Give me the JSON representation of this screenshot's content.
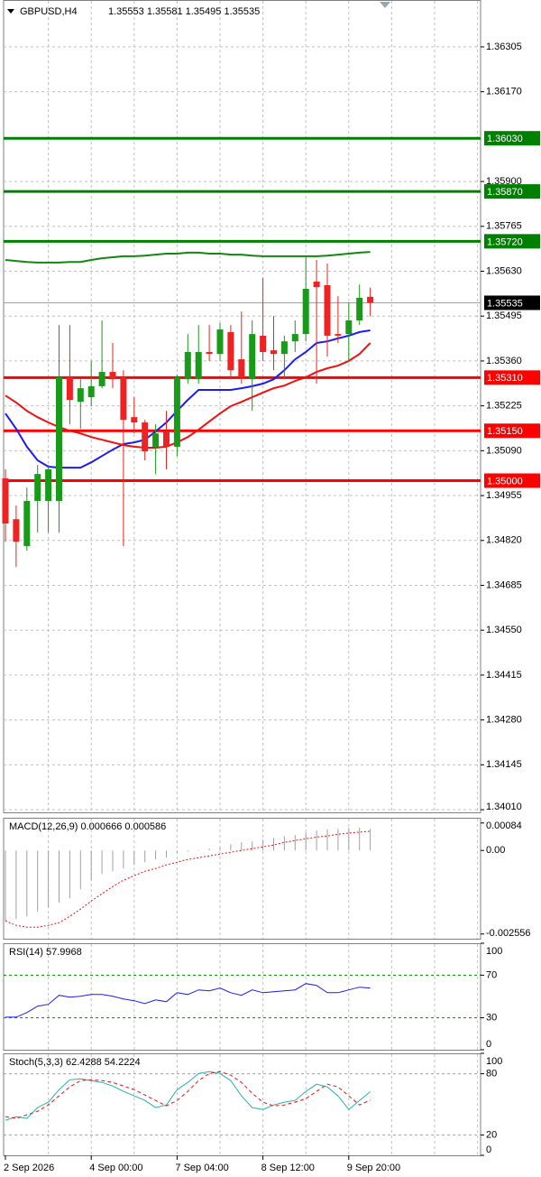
{
  "chart_data": [
    {
      "type": "candlestick",
      "title": "GBPUSD,H4",
      "ohlc_text": "1.35553 1.35581 1.35495 1.35535",
      "categories": [
        "2 Sep 2026",
        null,
        null,
        null,
        null,
        null,
        null,
        null,
        "4 Sep 00:00",
        null,
        null,
        null,
        null,
        null,
        null,
        null,
        "7 Sep 04:00",
        null,
        null,
        null,
        null,
        null,
        null,
        null,
        "8 Sep 12:00",
        null,
        null,
        null,
        null,
        null,
        null,
        null,
        "9 Sep 20:00",
        null,
        null
      ],
      "open": [
        1.35007,
        1.34884,
        1.34803,
        1.34939,
        1.34939,
        1.34939,
        1.35311,
        1.35237,
        1.35251,
        1.35284,
        1.35327,
        1.35311,
        1.35191,
        1.35175,
        1.35102,
        1.35148,
        1.35102,
        1.35305,
        1.35305,
        1.35387,
        1.35381,
        1.35447,
        1.35365,
        1.35305,
        1.35436,
        1.35392,
        1.35381,
        1.35419,
        1.35441,
        1.35599,
        1.35588,
        1.35441,
        1.35441,
        1.35482,
        1.35553
      ],
      "high": [
        1.35034,
        1.34925,
        1.34979,
        1.35047,
        1.35047,
        1.35468,
        1.35468,
        1.35305,
        1.3536,
        1.35482,
        1.35414,
        1.35332,
        1.35251,
        1.35183,
        1.3517,
        1.3521,
        1.35319,
        1.35441,
        1.35468,
        1.35468,
        1.35474,
        1.35468,
        1.35509,
        1.35482,
        1.3561,
        1.35495,
        1.35436,
        1.35482,
        1.35672,
        1.35664,
        1.35653,
        1.35555,
        1.35536,
        1.3559,
        1.35581
      ],
      "low": [
        1.34816,
        1.3474,
        1.34789,
        1.34844,
        1.34844,
        1.34844,
        1.3517,
        1.35156,
        1.35224,
        1.35278,
        1.35278,
        1.34803,
        1.35142,
        1.35061,
        1.3502,
        1.35034,
        1.35074,
        1.35292,
        1.35292,
        1.3536,
        1.3536,
        1.35305,
        1.35292,
        1.3521,
        1.3536,
        1.35332,
        1.35305,
        1.35387,
        1.35419,
        1.35292,
        1.35373,
        1.35414,
        1.3536,
        1.35468,
        1.35495
      ],
      "close": [
        1.34871,
        1.34816,
        1.34939,
        1.3502,
        1.35034,
        1.35311,
        1.35243,
        1.35278,
        1.35284,
        1.35327,
        1.35305,
        1.35183,
        1.35175,
        1.35088,
        1.35142,
        1.35102,
        1.35311,
        1.35387,
        1.35387,
        1.35381,
        1.35455,
        1.35332,
        1.35311,
        1.35441,
        1.35387,
        1.35381,
        1.35419,
        1.35441,
        1.35577,
        1.35582,
        1.35436,
        1.35436,
        1.35482,
        1.3555,
        1.35535
      ],
      "up_color": "#1a9a1a",
      "down_color": "#ee2222",
      "lines": [
        {
          "color": "#1c1cf0",
          "values": [
            1.35202,
            1.35156,
            1.35102,
            1.35061,
            1.35042,
            1.35039,
            1.35039,
            1.35039,
            1.35055,
            1.35074,
            1.35093,
            1.3511,
            1.35115,
            1.35123,
            1.35148,
            1.35175,
            1.3521,
            1.35243,
            1.35273,
            1.35273,
            1.35273,
            1.35273,
            1.35278,
            1.35284,
            1.35292,
            1.35305,
            1.35332,
            1.35365,
            1.35387,
            1.35414,
            1.35419,
            1.35428,
            1.35436,
            1.35447,
            1.35452
          ]
        },
        {
          "color": "#ee1111",
          "values": [
            1.35256,
            1.35235,
            1.3521,
            1.35191,
            1.35175,
            1.35161,
            1.3515,
            1.35142,
            1.35131,
            1.35123,
            1.35115,
            1.35107,
            1.35102,
            1.35099,
            1.35099,
            1.35102,
            1.35115,
            1.35131,
            1.35153,
            1.35178,
            1.35202,
            1.35224,
            1.35237,
            1.35251,
            1.35265,
            1.35278,
            1.35286,
            1.353,
            1.35311,
            1.35327,
            1.35338,
            1.35346,
            1.3536,
            1.35381,
            1.35414
          ]
        },
        {
          "color": "#118811",
          "values": [
            1.35664,
            1.35661,
            1.35658,
            1.35656,
            1.35656,
            1.35656,
            1.35658,
            1.35658,
            1.35664,
            1.35669,
            1.35672,
            1.35675,
            1.35675,
            1.35677,
            1.3568,
            1.35683,
            1.35683,
            1.35686,
            1.35686,
            1.35683,
            1.35683,
            1.3568,
            1.3568,
            1.35677,
            1.35675,
            1.35675,
            1.35675,
            1.35675,
            1.35675,
            1.35675,
            1.35677,
            1.3568,
            1.35683,
            1.35686,
            1.35688
          ]
        }
      ],
      "levels": [
        {
          "value": 1.3603,
          "label": "1.36030",
          "color": "#008000"
        },
        {
          "value": 1.3587,
          "label": "1.35870",
          "color": "#008000"
        },
        {
          "value": 1.3572,
          "label": "1.35720",
          "color": "#008000"
        },
        {
          "value": 1.3531,
          "label": "1.35310",
          "color": "#ff0000"
        },
        {
          "value": 1.3515,
          "label": "1.35150",
          "color": "#ff0000"
        },
        {
          "value": 1.35,
          "label": "1.35000",
          "color": "#ff0000"
        }
      ],
      "last_price": 1.35535,
      "ylim": [
        1.34002,
        1.36446
      ],
      "yticks": [
        1.36305,
        {
          "value": 1.3617,
          "label": "1.36170"
        },
        {
          "value": 1.359,
          "label": "1.35900"
        },
        1.35765,
        {
          "value": 1.3563,
          "label": "1.35630"
        },
        1.35495,
        {
          "value": 1.3536,
          "label": "1.35360"
        },
        1.35225,
        {
          "value": 1.3509,
          "label": "1.35090"
        },
        1.34955,
        {
          "value": 1.3482,
          "label": "1.34820"
        },
        1.34685,
        {
          "value": 1.3455,
          "label": "1.34550"
        },
        1.34415,
        {
          "value": 1.3428,
          "label": "1.34280"
        },
        1.34145,
        {
          "value": 1.3401,
          "label": "1.34010"
        }
      ],
      "grid": true
    },
    {
      "type": "macd",
      "title": "MACD(12,26,9) 0.000666 0.000586",
      "histogram": {
        "color": "#a0a0a0",
        "values": [
          -0.002154,
          -0.0021,
          -0.002016,
          -0.001877,
          -0.001739,
          -0.001601,
          -0.001463,
          -0.001187,
          -0.000911,
          -0.000718,
          -0.000635,
          -0.000552,
          -0.000442,
          -0.000359,
          -0.000276,
          -0.000221,
          -8.3e-05,
          -3e-05,
          2e-05,
          5.5e-05,
          0.00011,
          0.000193,
          0.000248,
          0.000276,
          0.000331,
          0.000387,
          0.000442,
          0.000469,
          0.000552,
          0.000607,
          0.00064,
          0.000663,
          0.00069,
          0.0007,
          0.000666
        ]
      },
      "signal": {
        "color": "#ee1111",
        "values": [
          -0.002154,
          -0.002292,
          -0.002347,
          -0.002347,
          -0.002292,
          -0.002209,
          -0.002016,
          -0.001795,
          -0.001546,
          -0.001325,
          -0.001104,
          -0.000911,
          -0.000773,
          -0.000635,
          -0.000552,
          -0.000442,
          -0.000359,
          -0.000276,
          -0.000221,
          -0.000166,
          -0.00011,
          -5.5e-05,
          0,
          5.5e-05,
          0.00011,
          0.000166,
          0.000248,
          0.000304,
          0.000359,
          0.00041,
          0.000442,
          0.000497,
          0.00053,
          0.00056,
          0.000586
        ]
      },
      "ylim": [
        -0.0027,
        0.001
      ],
      "yticks": [
        0.00084,
        {
          "value": 0,
          "label": "0.00"
        },
        -0.002556
      ]
    },
    {
      "type": "line",
      "title": "RSI(14) 57.9968",
      "series": [
        {
          "color": "#1c1cf0",
          "dashed": false,
          "values": [
            30.6,
            30.6,
            34.9,
            40.9,
            42.6,
            51.1,
            49.4,
            50.2,
            51.9,
            51.9,
            50.2,
            47.7,
            46.0,
            43.4,
            46.8,
            45.1,
            53.6,
            51.9,
            56.2,
            55.3,
            57.9,
            53.6,
            51.1,
            56.2,
            53.6,
            54.5,
            55.3,
            56.2,
            62.1,
            60.4,
            53.6,
            53.6,
            56.2,
            58.7,
            58.0
          ]
        }
      ],
      "levels": [
        70,
        30
      ],
      "level_color": "#008000",
      "ylim": [
        0,
        100
      ],
      "yticks": [
        100,
        70,
        30,
        0
      ]
    },
    {
      "type": "line",
      "title": "Stoch(5,3,3) 62.4288 54.2224",
      "series": [
        {
          "color": "#20b2aa",
          "dashed": false,
          "values": [
            34.4,
            38.0,
            36.2,
            46.8,
            52.1,
            64.4,
            74.1,
            75.0,
            73.3,
            71.5,
            68.0,
            62.7,
            58.3,
            53.8,
            46.8,
            49.4,
            64.4,
            71.5,
            80.3,
            82.1,
            80.3,
            73.3,
            58.3,
            46.8,
            45.0,
            49.4,
            52.1,
            53.8,
            62.7,
            69.7,
            67.1,
            58.3,
            45.0,
            53.8,
            62.4
          ]
        },
        {
          "color": "#ee1111",
          "dashed": true,
          "values": [
            38.0,
            36.2,
            39.7,
            43.2,
            49.4,
            58.3,
            67.1,
            73.3,
            74.1,
            73.3,
            71.5,
            68.0,
            64.4,
            59.1,
            53.8,
            48.5,
            53.8,
            62.7,
            73.3,
            80.3,
            82.1,
            78.6,
            71.5,
            60.9,
            52.1,
            48.5,
            49.4,
            52.1,
            55.6,
            62.7,
            69.7,
            67.1,
            58.3,
            49.4,
            54.2
          ]
        }
      ],
      "levels": [
        80,
        20
      ],
      "level_color": "#a0a0a0",
      "ylim": [
        0,
        100
      ],
      "yticks": [
        100,
        80,
        20,
        0
      ]
    }
  ]
}
